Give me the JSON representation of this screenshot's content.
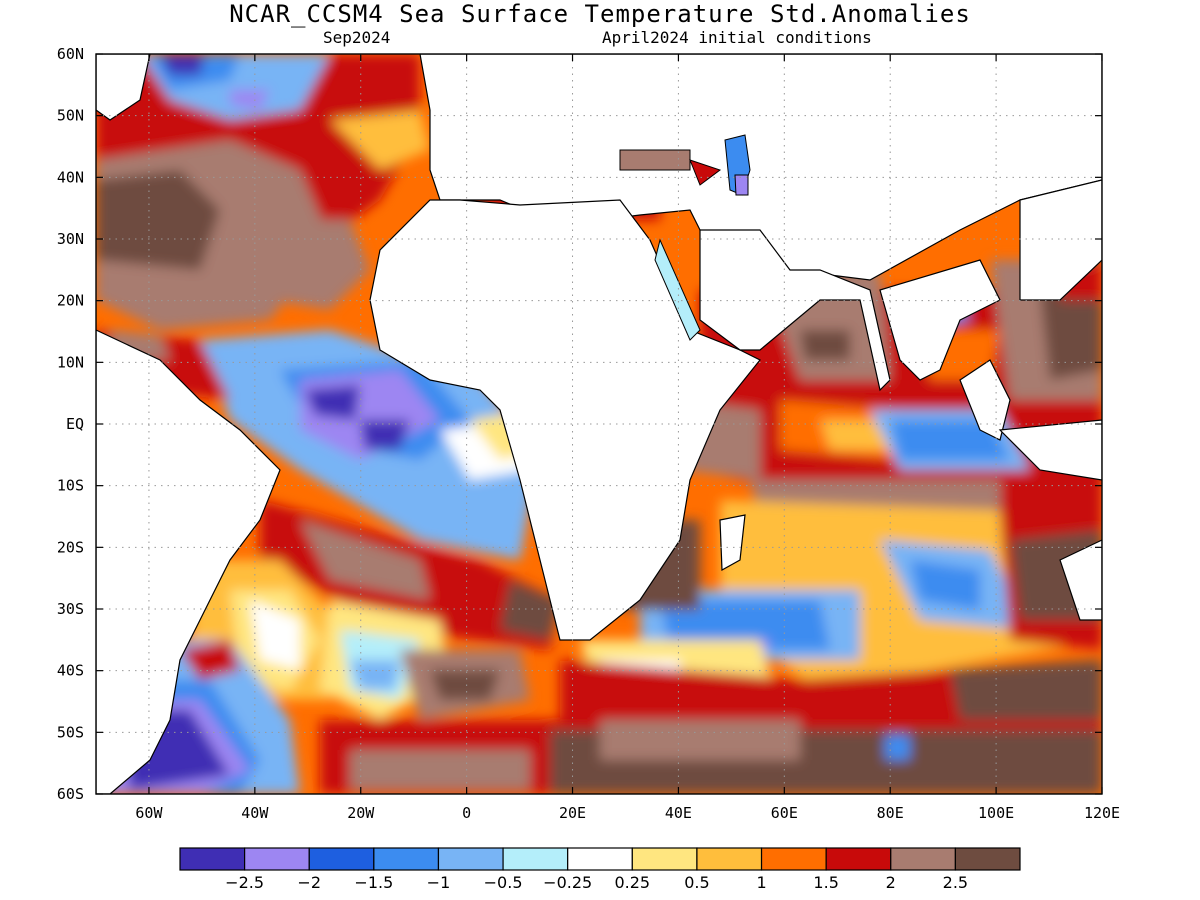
{
  "title": "NCAR_CCSM4 Sea Surface Temperature Std.Anomalies",
  "subtitle_left": "Sep2024",
  "subtitle_right": "April2024 initial conditions",
  "map": {
    "lon_labels": [
      "60W",
      "40W",
      "20W",
      "0",
      "20E",
      "40E",
      "60E",
      "80E",
      "100E",
      "120E"
    ],
    "lon_values": [
      -60,
      -40,
      -20,
      0,
      20,
      40,
      60,
      80,
      100,
      120
    ],
    "lat_labels": [
      "60N",
      "50N",
      "40N",
      "30N",
      "20N",
      "10N",
      "EQ",
      "10S",
      "20S",
      "30S",
      "40S",
      "50S",
      "60S"
    ],
    "lat_values": [
      60,
      50,
      40,
      30,
      20,
      10,
      0,
      -10,
      -20,
      -30,
      -40,
      -50,
      -60
    ],
    "lon_range": [
      -70,
      120
    ],
    "lat_range": [
      -60,
      60
    ],
    "grid": "dotted"
  },
  "colorbar": {
    "colors": [
      "#3f2eb4",
      "#9d86f2",
      "#1e5fe0",
      "#3c8cf0",
      "#78b4f5",
      "#b4eefa",
      "#ffffff",
      "#ffe680",
      "#ffbe3c",
      "#ff6e00",
      "#c80a0a",
      "#a87c70",
      "#6e4c40"
    ],
    "labels": [
      "-2.5",
      "-2",
      "-1.5",
      "-1",
      "-0.5",
      "-0.25",
      "0.25",
      "0.5",
      "1",
      "1.5",
      "2",
      "2.5"
    ]
  }
}
